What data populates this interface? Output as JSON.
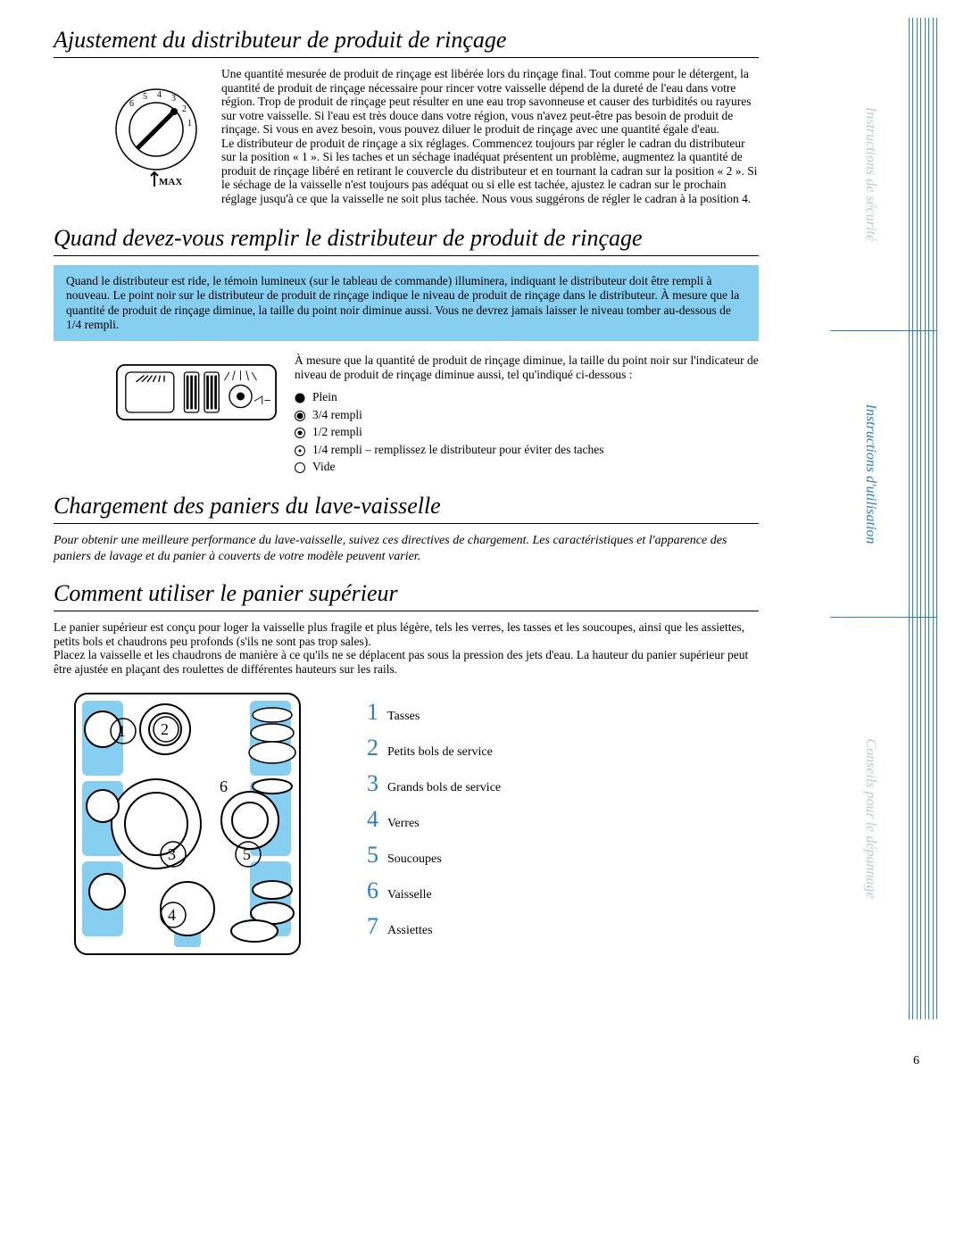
{
  "section1": {
    "title": "Ajustement du distributeur de produit de rinçage",
    "dial": {
      "labels": [
        "6",
        "5",
        "4",
        "3",
        "2",
        "1"
      ],
      "max": "MAX"
    },
    "paragraph": "Une quantité mesurée de produit de rinçage est libérée lors du rinçage final. Tout comme pour le détergent, la quantité de produit de rinçage nécessaire pour rincer votre vaisselle dépend de la dureté de l'eau dans votre région. Trop de produit de rinçage peut résulter en une eau trop savonneuse et causer des turbidités ou rayures sur votre vaisselle. Si l'eau est très douce dans votre région, vous n'avez peut-être pas besoin de produit de rinçage. Si vous en avez besoin, vous pouvez diluer le produit de rinçage avec une quantité égale d'eau.\nLe distributeur de produit de rinçage a six réglages. Commencez toujours par régler le cadran du distributeur sur la position « 1 ». Si les taches et un séchage inadéquat présentent un problème, augmentez la quantité de produit de rinçage libéré en retirant le couvercle du distributeur et en tournant la cadran sur la position « 2 ». Si le séchage de la vaisselle n'est toujours pas adéquat ou si elle est tachée, ajustez le cadran sur le prochain réglage jusqu'à ce que la vaisselle ne soit plus tachée. Nous vous suggérons de régler le cadran à la position 4."
  },
  "section2": {
    "title": "Quand devez-vous remplir le distributeur de produit de rinçage",
    "highlight": "Quand le distributeur est ride, le témoin lumineux (sur le tableau de commande) illuminera, indiquant le distributeur doit être rempli à nouveau. Le point noir sur le distributeur de produit de rinçage indique le niveau de produit de rinçage dans le distributeur. À mesure que la quantité de produit de rinçage diminue, la taille du point noir diminue aussi. Vous ne devrez jamais laisser le niveau tomber au-dessous de 1/4 rempli.",
    "levels_intro": "À mesure que la quantité de produit de rinçage diminue, la taille du point noir sur l'indicateur de niveau de produit de rinçage diminue aussi, tel qu'indiqué ci-dessous :",
    "levels": [
      {
        "icon": "full",
        "label": "Plein"
      },
      {
        "icon": "three4",
        "label": "3/4 rempli"
      },
      {
        "icon": "half",
        "label": "1/2 rempli"
      },
      {
        "icon": "quarter",
        "label": "1/4 rempli – remplissez le distributeur pour éviter des taches"
      },
      {
        "icon": "empty",
        "label": "Vide"
      }
    ]
  },
  "section3": {
    "title": "Chargement des paniers du lave-vaisselle",
    "intro": "Pour obtenir une meilleure performance du lave-vaisselle, suivez ces directives de chargement. Les caractéristiques et l'apparence des paniers de lavage et du panier à couverts de votre modèle peuvent varier."
  },
  "section4": {
    "title": "Comment utiliser le panier supérieur",
    "paragraph": "Le panier supérieur est conçu pour loger la vaisselle plus fragile et plus légère, tels les verres, les tasses et les soucoupes, ainsi que les assiettes, petits bols et chaudrons peu profonds (s'ils ne sont pas trop sales).\nPlacez la vaisselle et les chaudrons de manière à ce qu'ils ne se déplacent pas sous la pression des jets d'eau. La hauteur du panier supérieur peut être ajustée en plaçant des roulettes de différentes hauteurs sur les rails.",
    "legend": [
      {
        "num": "1",
        "label": "Tasses"
      },
      {
        "num": "2",
        "label": "Petits bols de service"
      },
      {
        "num": "3",
        "label": "Grands bols de service"
      },
      {
        "num": "4",
        "label": "Verres"
      },
      {
        "num": "5",
        "label": "Soucoupes"
      },
      {
        "num": "6",
        "label": "Vaisselle"
      },
      {
        "num": "7",
        "label": "Assiettes"
      }
    ],
    "rack": {
      "diagram_labels": {
        "n1": "1",
        "n2": "2",
        "n3": "3",
        "n4": "4",
        "n5": "5",
        "n6": "6"
      }
    }
  },
  "sidestrip": {
    "items": [
      {
        "label": "Instructions de sécurité",
        "color": "#b9ccd0"
      },
      {
        "label": "Instructions d'utilisation",
        "color": "#2a7fbf"
      },
      {
        "label": "Conseils pour le dépannage",
        "color": "#b9ccd0"
      }
    ]
  },
  "colors": {
    "highlight_bg": "#87cff0",
    "accent": "#2a7fbf",
    "muted": "#b9ccd0",
    "rack_bg": "#87cff0",
    "ink": "#000000"
  },
  "page_number": "6"
}
